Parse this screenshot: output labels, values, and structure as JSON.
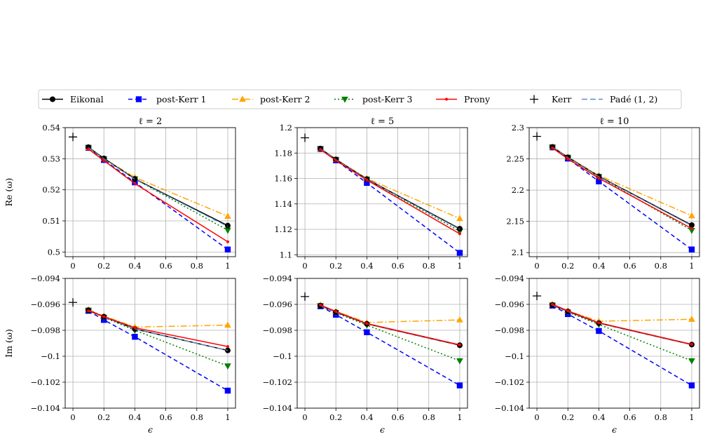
{
  "legend": {
    "entries": [
      {
        "key": "eikonal",
        "label": "Eikonal"
      },
      {
        "key": "pk1",
        "label": "post-Kerr 1"
      },
      {
        "key": "pk2",
        "label": "post-Kerr 2"
      },
      {
        "key": "pk3",
        "label": "post-Kerr 3"
      },
      {
        "key": "prony",
        "label": "Prony"
      },
      {
        "key": "kerr",
        "label": "Kerr"
      },
      {
        "key": "pade",
        "label": "Padé (1, 2)"
      }
    ]
  },
  "styles": {
    "eikonal": {
      "color": "#000000",
      "dash": "",
      "marker": "circle"
    },
    "pade": {
      "color": "#5b8fc7",
      "dash": "8,4",
      "marker": "none"
    },
    "pk1": {
      "color": "#0000ff",
      "dash": "6,4",
      "marker": "square"
    },
    "pk2": {
      "color": "#ffa500",
      "dash": "9,3,2,3",
      "marker": "triangle-up"
    },
    "pk3": {
      "color": "#008000",
      "dash": "2,3",
      "marker": "triangle-down"
    },
    "prony": {
      "color": "#ff0000",
      "dash": "",
      "marker": "dot"
    },
    "kerr": {
      "color": "#000000",
      "marker": "plus"
    }
  },
  "chart_data": [
    {
      "type": "line",
      "title": "ℓ = 2",
      "xlabel": "",
      "ylabel": "Re (ω)",
      "xlim": [
        -0.05,
        1.05
      ],
      "ylim": [
        0.4985,
        0.54
      ],
      "xticks": [
        0,
        0.2,
        0.4,
        0.6,
        0.8,
        1
      ],
      "xtick_labels": [
        "0",
        "0.2",
        "0.4",
        "0.6",
        "0.8",
        "1"
      ],
      "yticks": [
        0.5,
        0.51,
        0.52,
        0.53,
        0.54
      ],
      "ytick_labels": [
        "0.5",
        "0.51",
        "0.52",
        "0.53",
        "0.54"
      ],
      "x": [
        0.1,
        0.2,
        0.4,
        1
      ],
      "series": [
        {
          "key": "eikonal",
          "name": "Eikonal",
          "values": [
            0.5337,
            0.5301,
            0.5235,
            0.5085
          ]
        },
        {
          "key": "pade",
          "name": "Padé (1, 2)",
          "values": [
            0.5336,
            0.53,
            0.5234,
            0.5082
          ]
        },
        {
          "key": "pk1",
          "name": "post-Kerr 1",
          "values": [
            0.5335,
            0.5296,
            0.5224,
            0.5008
          ]
        },
        {
          "key": "pk2",
          "name": "post-Kerr 2",
          "values": [
            0.5336,
            0.5301,
            0.524,
            0.5115
          ]
        },
        {
          "key": "pk3",
          "name": "post-Kerr 3",
          "values": [
            0.5336,
            0.53,
            0.5235,
            0.507
          ]
        },
        {
          "key": "prony",
          "name": "Prony",
          "values": [
            0.5331,
            0.5294,
            0.522,
            0.5033
          ]
        }
      ],
      "kerr": {
        "x": 0,
        "y": 0.537
      }
    },
    {
      "type": "line",
      "title": "ℓ = 5",
      "xlabel": "",
      "ylabel": "",
      "xlim": [
        -0.05,
        1.05
      ],
      "ylim": [
        1.0985,
        1.2
      ],
      "xticks": [
        0,
        0.2,
        0.4,
        0.6,
        0.8,
        1
      ],
      "xtick_labels": [
        "0",
        "0.2",
        "0.4",
        "0.6",
        "0.8",
        "1"
      ],
      "yticks": [
        1.1,
        1.12,
        1.14,
        1.16,
        1.18,
        1.2
      ],
      "ytick_labels": [
        "1.1",
        "1.12",
        "1.14",
        "1.16",
        "1.18",
        "1.2"
      ],
      "x": [
        0.1,
        0.2,
        0.4,
        1
      ],
      "series": [
        {
          "key": "eikonal",
          "name": "Eikonal",
          "values": [
            1.1835,
            1.175,
            1.1595,
            1.1205
          ]
        },
        {
          "key": "pade",
          "name": "Padé (1, 2)",
          "values": [
            1.1834,
            1.1749,
            1.1593,
            1.12
          ]
        },
        {
          "key": "pk1",
          "name": "post-Kerr 1",
          "values": [
            1.1832,
            1.1743,
            1.1565,
            1.1015
          ]
        },
        {
          "key": "pk2",
          "name": "post-Kerr 2",
          "values": [
            1.1834,
            1.1751,
            1.16,
            1.1285
          ]
        },
        {
          "key": "pk3",
          "name": "post-Kerr 3",
          "values": [
            1.1834,
            1.175,
            1.1595,
            1.1185
          ]
        },
        {
          "key": "prony",
          "name": "Prony",
          "values": [
            1.1828,
            1.1742,
            1.1588,
            1.1165
          ]
        }
      ],
      "kerr": {
        "x": 0,
        "y": 1.192
      }
    },
    {
      "type": "line",
      "title": "ℓ = 10",
      "xlabel": "",
      "ylabel": "",
      "xlim": [
        -0.05,
        1.05
      ],
      "ylim": [
        2.0935,
        2.3
      ],
      "xticks": [
        0,
        0.2,
        0.4,
        0.6,
        0.8,
        1
      ],
      "xtick_labels": [
        "0",
        "0.2",
        "0.4",
        "0.6",
        "0.8",
        "1"
      ],
      "yticks": [
        2.1,
        2.15,
        2.2,
        2.25,
        2.3
      ],
      "ytick_labels": [
        "2.1",
        "2.15",
        "2.2",
        "2.25",
        "2.3"
      ],
      "x": [
        0.1,
        0.2,
        0.4,
        1
      ],
      "series": [
        {
          "key": "eikonal",
          "name": "Eikonal",
          "values": [
            2.269,
            2.2525,
            2.222,
            2.144
          ]
        },
        {
          "key": "pade",
          "name": "Padé (1, 2)",
          "values": [
            2.2688,
            2.2522,
            2.2215,
            2.143
          ]
        },
        {
          "key": "pk1",
          "name": "post-Kerr 1",
          "values": [
            2.2685,
            2.2505,
            2.214,
            2.105
          ]
        },
        {
          "key": "pk2",
          "name": "post-Kerr 2",
          "values": [
            2.269,
            2.253,
            2.2235,
            2.159
          ]
        },
        {
          "key": "pk3",
          "name": "post-Kerr 3",
          "values": [
            2.269,
            2.2525,
            2.2215,
            2.1355
          ]
        },
        {
          "key": "prony",
          "name": "Prony",
          "values": [
            2.2675,
            2.25,
            2.219,
            2.1385
          ]
        }
      ],
      "kerr": {
        "x": 0,
        "y": 2.286
      }
    },
    {
      "type": "line",
      "title": "",
      "xlabel": "ϵ",
      "ylabel": "Im (ω)",
      "xlim": [
        -0.05,
        1.05
      ],
      "ylim": [
        -0.104,
        -0.094
      ],
      "xticks": [
        0,
        0.2,
        0.4,
        0.6,
        0.8,
        1
      ],
      "xtick_labels": [
        "0",
        "0.2",
        "0.4",
        "0.6",
        "0.8",
        "1"
      ],
      "yticks": [
        -0.104,
        -0.102,
        -0.1,
        -0.098,
        -0.096,
        -0.094
      ],
      "ytick_labels": [
        "−0.104",
        "−0.102",
        "−0.1",
        "−0.098",
        "−0.096",
        "−0.094"
      ],
      "x": [
        0.1,
        0.2,
        0.4,
        1
      ],
      "series": [
        {
          "key": "eikonal",
          "name": "Eikonal",
          "values": [
            -0.09645,
            -0.09695,
            -0.0979,
            -0.09955
          ]
        },
        {
          "key": "pade",
          "name": "Padé (1, 2)",
          "values": [
            -0.09645,
            -0.09695,
            -0.0979,
            -0.09955
          ]
        },
        {
          "key": "pk1",
          "name": "post-Kerr 1",
          "values": [
            -0.0965,
            -0.0972,
            -0.0985,
            -0.10265
          ]
        },
        {
          "key": "pk2",
          "name": "post-Kerr 2",
          "values": [
            -0.0964,
            -0.0969,
            -0.09775,
            -0.0976
          ]
        },
        {
          "key": "pk3",
          "name": "post-Kerr 3",
          "values": [
            -0.09645,
            -0.097,
            -0.098,
            -0.10075
          ]
        },
        {
          "key": "prony",
          "name": "Prony",
          "values": [
            -0.0965,
            -0.09695,
            -0.0978,
            -0.09925
          ]
        }
      ],
      "kerr": {
        "x": 0,
        "y": -0.09585
      }
    },
    {
      "type": "line",
      "title": "",
      "xlabel": "ϵ",
      "ylabel": "",
      "xlim": [
        -0.05,
        1.05
      ],
      "ylim": [
        -0.104,
        -0.094
      ],
      "xticks": [
        0,
        0.2,
        0.4,
        0.6,
        0.8,
        1
      ],
      "xtick_labels": [
        "0",
        "0.2",
        "0.4",
        "0.6",
        "0.8",
        "1"
      ],
      "yticks": [
        -0.104,
        -0.102,
        -0.1,
        -0.098,
        -0.096,
        -0.094
      ],
      "ytick_labels": [
        "−0.104",
        "−0.102",
        "−0.1",
        "−0.098",
        "−0.096",
        "−0.094"
      ],
      "x": [
        0.1,
        0.2,
        0.4,
        1
      ],
      "series": [
        {
          "key": "eikonal",
          "name": "Eikonal",
          "values": [
            -0.0961,
            -0.0966,
            -0.0975,
            -0.09915
          ]
        },
        {
          "key": "pade",
          "name": "Padé (1, 2)",
          "values": [
            -0.0961,
            -0.0966,
            -0.0975,
            -0.09915
          ]
        },
        {
          "key": "pk1",
          "name": "post-Kerr 1",
          "values": [
            -0.09615,
            -0.0968,
            -0.09815,
            -0.10225
          ]
        },
        {
          "key": "pk2",
          "name": "post-Kerr 2",
          "values": [
            -0.09605,
            -0.09655,
            -0.0974,
            -0.0972
          ]
        },
        {
          "key": "pk3",
          "name": "post-Kerr 3",
          "values": [
            -0.0961,
            -0.09665,
            -0.0976,
            -0.10035
          ]
        },
        {
          "key": "prony",
          "name": "Prony",
          "values": [
            -0.09605,
            -0.09655,
            -0.09748,
            -0.09912
          ]
        }
      ],
      "kerr": {
        "x": 0,
        "y": -0.0954
      }
    },
    {
      "type": "line",
      "title": "",
      "xlabel": "ϵ",
      "ylabel": "",
      "xlim": [
        -0.05,
        1.05
      ],
      "ylim": [
        -0.104,
        -0.094
      ],
      "xticks": [
        0,
        0.2,
        0.4,
        0.6,
        0.8,
        1
      ],
      "xtick_labels": [
        "0",
        "0.2",
        "0.4",
        "0.6",
        "0.8",
        "1"
      ],
      "yticks": [
        -0.104,
        -0.102,
        -0.1,
        -0.098,
        -0.096,
        -0.094
      ],
      "ytick_labels": [
        "−0.104",
        "−0.102",
        "−0.1",
        "−0.098",
        "−0.096",
        "−0.094"
      ],
      "x": [
        0.1,
        0.2,
        0.4,
        1
      ],
      "series": [
        {
          "key": "eikonal",
          "name": "Eikonal",
          "values": [
            -0.09605,
            -0.09655,
            -0.09745,
            -0.0991
          ]
        },
        {
          "key": "pade",
          "name": "Padé (1, 2)",
          "values": [
            -0.09605,
            -0.09655,
            -0.09745,
            -0.0991
          ]
        },
        {
          "key": "pk1",
          "name": "post-Kerr 1",
          "values": [
            -0.0961,
            -0.09675,
            -0.09805,
            -0.10225
          ]
        },
        {
          "key": "pk2",
          "name": "post-Kerr 2",
          "values": [
            -0.096,
            -0.0965,
            -0.0973,
            -0.09715
          ]
        },
        {
          "key": "pk3",
          "name": "post-Kerr 3",
          "values": [
            -0.09605,
            -0.0966,
            -0.09755,
            -0.10035
          ]
        },
        {
          "key": "prony",
          "name": "Prony",
          "values": [
            -0.096,
            -0.0965,
            -0.09742,
            -0.09908
          ]
        }
      ],
      "kerr": {
        "x": 0,
        "y": -0.09535
      }
    }
  ]
}
